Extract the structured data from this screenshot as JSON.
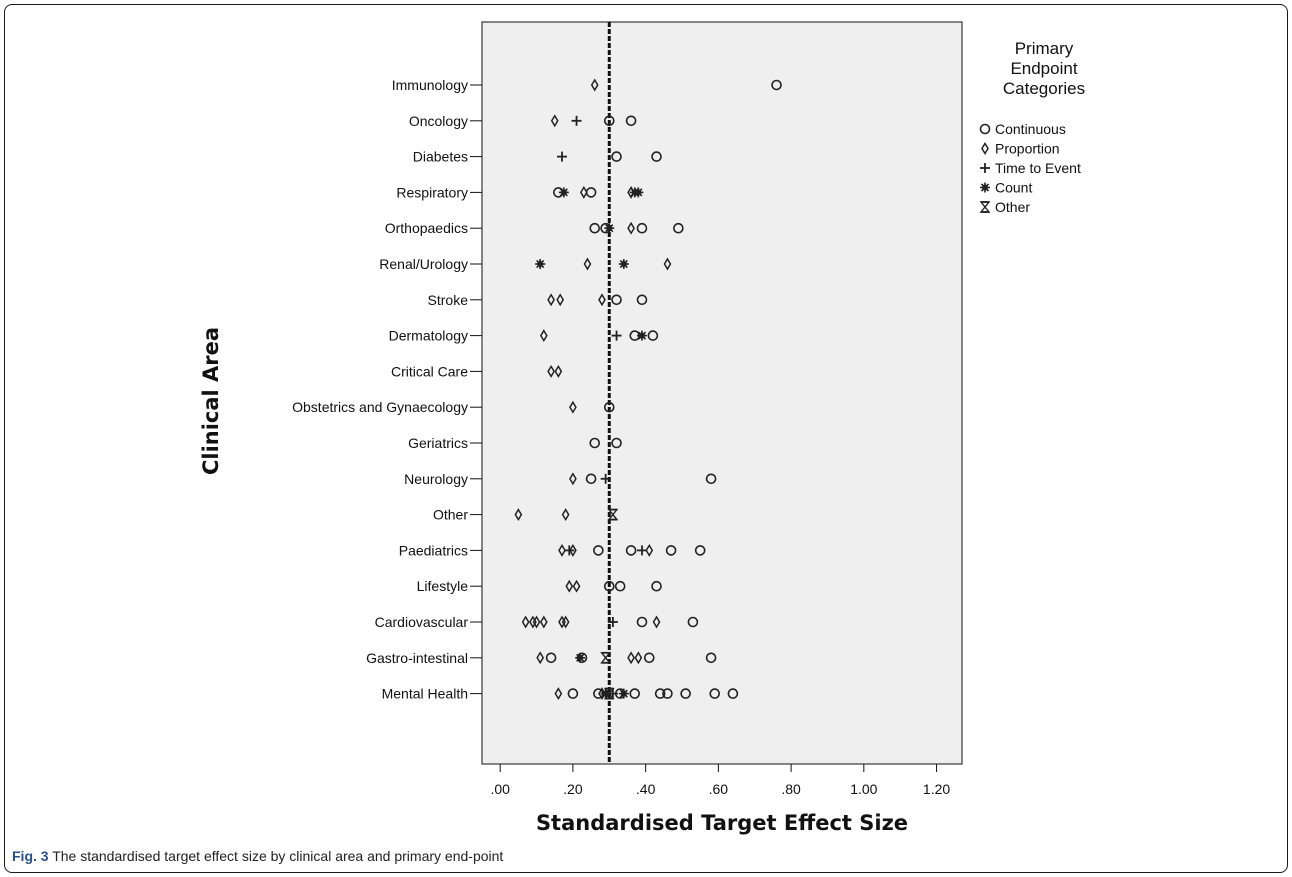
{
  "chart_data": {
    "type": "scatter",
    "xlabel": "Standardised Target Effect Size",
    "ylabel": "Clinical Area",
    "xlim": [
      -0.05,
      1.27
    ],
    "x_ticks": [
      ".00",
      ".20",
      ".40",
      ".60",
      ".80",
      "1.00",
      "1.20"
    ],
    "reference_line_x": 0.3,
    "legend": {
      "position": "right",
      "title_lines": [
        "Primary",
        "Endpoint",
        "Categories"
      ],
      "entries": [
        {
          "key": "Continuous",
          "label": "Continuous",
          "marker": "circle"
        },
        {
          "key": "Proportion",
          "label": "Proportion",
          "marker": "diamond"
        },
        {
          "key": "TimeToEvent",
          "label": "Time to Event",
          "marker": "plus"
        },
        {
          "key": "Count",
          "label": "Count",
          "marker": "asterisk"
        },
        {
          "key": "Other",
          "label": "Other",
          "marker": "hourglass"
        }
      ]
    },
    "categories": [
      "Immunology",
      "Oncology",
      "Diabetes",
      "Respiratory",
      "Orthopaedics",
      "Renal/Urology",
      "Stroke",
      "Dermatology",
      "Critical Care",
      "Obstetrics and Gynaecology",
      "Geriatrics",
      "Neurology",
      "Other",
      "Paediatrics",
      "Lifestyle",
      "Cardiovascular",
      "Gastro-intestinal",
      "Mental Health"
    ],
    "points": [
      {
        "area": "Immunology",
        "type": "Proportion",
        "x": 0.26
      },
      {
        "area": "Immunology",
        "type": "Continuous",
        "x": 0.76
      },
      {
        "area": "Oncology",
        "type": "Proportion",
        "x": 0.15
      },
      {
        "area": "Oncology",
        "type": "TimeToEvent",
        "x": 0.21
      },
      {
        "area": "Oncology",
        "type": "Continuous",
        "x": 0.3
      },
      {
        "area": "Oncology",
        "type": "Continuous",
        "x": 0.36
      },
      {
        "area": "Diabetes",
        "type": "TimeToEvent",
        "x": 0.17
      },
      {
        "area": "Diabetes",
        "type": "Continuous",
        "x": 0.32
      },
      {
        "area": "Diabetes",
        "type": "Continuous",
        "x": 0.43
      },
      {
        "area": "Respiratory",
        "type": "Continuous",
        "x": 0.16
      },
      {
        "area": "Respiratory",
        "type": "Count",
        "x": 0.175
      },
      {
        "area": "Respiratory",
        "type": "Proportion",
        "x": 0.23
      },
      {
        "area": "Respiratory",
        "type": "Continuous",
        "x": 0.25
      },
      {
        "area": "Respiratory",
        "type": "Proportion",
        "x": 0.36
      },
      {
        "area": "Respiratory",
        "type": "Count",
        "x": 0.37
      },
      {
        "area": "Respiratory",
        "type": "Count",
        "x": 0.38
      },
      {
        "area": "Orthopaedics",
        "type": "Continuous",
        "x": 0.26
      },
      {
        "area": "Orthopaedics",
        "type": "Continuous",
        "x": 0.29
      },
      {
        "area": "Orthopaedics",
        "type": "Count",
        "x": 0.3
      },
      {
        "area": "Orthopaedics",
        "type": "Proportion",
        "x": 0.36
      },
      {
        "area": "Orthopaedics",
        "type": "Continuous",
        "x": 0.39
      },
      {
        "area": "Orthopaedics",
        "type": "Continuous",
        "x": 0.49
      },
      {
        "area": "Renal/Urology",
        "type": "Count",
        "x": 0.11
      },
      {
        "area": "Renal/Urology",
        "type": "Proportion",
        "x": 0.24
      },
      {
        "area": "Renal/Urology",
        "type": "Count",
        "x": 0.34
      },
      {
        "area": "Renal/Urology",
        "type": "Proportion",
        "x": 0.46
      },
      {
        "area": "Stroke",
        "type": "Proportion",
        "x": 0.14
      },
      {
        "area": "Stroke",
        "type": "Proportion",
        "x": 0.165
      },
      {
        "area": "Stroke",
        "type": "Proportion",
        "x": 0.28
      },
      {
        "area": "Stroke",
        "type": "Continuous",
        "x": 0.32
      },
      {
        "area": "Stroke",
        "type": "Continuous",
        "x": 0.39
      },
      {
        "area": "Dermatology",
        "type": "Proportion",
        "x": 0.12
      },
      {
        "area": "Dermatology",
        "type": "TimeToEvent",
        "x": 0.32
      },
      {
        "area": "Dermatology",
        "type": "Continuous",
        "x": 0.37
      },
      {
        "area": "Dermatology",
        "type": "Count",
        "x": 0.39
      },
      {
        "area": "Dermatology",
        "type": "Continuous",
        "x": 0.42
      },
      {
        "area": "Critical Care",
        "type": "Proportion",
        "x": 0.14
      },
      {
        "area": "Critical Care",
        "type": "Proportion",
        "x": 0.16
      },
      {
        "area": "Obstetrics and Gynaecology",
        "type": "Proportion",
        "x": 0.2
      },
      {
        "area": "Obstetrics and Gynaecology",
        "type": "Continuous",
        "x": 0.3
      },
      {
        "area": "Geriatrics",
        "type": "Continuous",
        "x": 0.26
      },
      {
        "area": "Geriatrics",
        "type": "Continuous",
        "x": 0.32
      },
      {
        "area": "Neurology",
        "type": "Proportion",
        "x": 0.2
      },
      {
        "area": "Neurology",
        "type": "Continuous",
        "x": 0.25
      },
      {
        "area": "Neurology",
        "type": "TimeToEvent",
        "x": 0.29
      },
      {
        "area": "Neurology",
        "type": "Continuous",
        "x": 0.58
      },
      {
        "area": "Other",
        "type": "Proportion",
        "x": 0.05
      },
      {
        "area": "Other",
        "type": "Proportion",
        "x": 0.18
      },
      {
        "area": "Other",
        "type": "Other",
        "x": 0.31
      },
      {
        "area": "Paediatrics",
        "type": "Proportion",
        "x": 0.17
      },
      {
        "area": "Paediatrics",
        "type": "TimeToEvent",
        "x": 0.19
      },
      {
        "area": "Paediatrics",
        "type": "Proportion",
        "x": 0.2
      },
      {
        "area": "Paediatrics",
        "type": "Continuous",
        "x": 0.27
      },
      {
        "area": "Paediatrics",
        "type": "Continuous",
        "x": 0.36
      },
      {
        "area": "Paediatrics",
        "type": "TimeToEvent",
        "x": 0.39
      },
      {
        "area": "Paediatrics",
        "type": "Proportion",
        "x": 0.41
      },
      {
        "area": "Paediatrics",
        "type": "Continuous",
        "x": 0.47
      },
      {
        "area": "Paediatrics",
        "type": "Continuous",
        "x": 0.55
      },
      {
        "area": "Lifestyle",
        "type": "Proportion",
        "x": 0.19
      },
      {
        "area": "Lifestyle",
        "type": "Proportion",
        "x": 0.21
      },
      {
        "area": "Lifestyle",
        "type": "Continuous",
        "x": 0.3
      },
      {
        "area": "Lifestyle",
        "type": "Continuous",
        "x": 0.33
      },
      {
        "area": "Lifestyle",
        "type": "Continuous",
        "x": 0.43
      },
      {
        "area": "Cardiovascular",
        "type": "Proportion",
        "x": 0.07
      },
      {
        "area": "Cardiovascular",
        "type": "Proportion",
        "x": 0.09
      },
      {
        "area": "Cardiovascular",
        "type": "Proportion",
        "x": 0.1
      },
      {
        "area": "Cardiovascular",
        "type": "Proportion",
        "x": 0.12
      },
      {
        "area": "Cardiovascular",
        "type": "Proportion",
        "x": 0.17
      },
      {
        "area": "Cardiovascular",
        "type": "Proportion",
        "x": 0.18
      },
      {
        "area": "Cardiovascular",
        "type": "TimeToEvent",
        "x": 0.31
      },
      {
        "area": "Cardiovascular",
        "type": "Continuous",
        "x": 0.39
      },
      {
        "area": "Cardiovascular",
        "type": "Proportion",
        "x": 0.43
      },
      {
        "area": "Cardiovascular",
        "type": "Continuous",
        "x": 0.53
      },
      {
        "area": "Gastro-intestinal",
        "type": "Proportion",
        "x": 0.11
      },
      {
        "area": "Gastro-intestinal",
        "type": "Continuous",
        "x": 0.14
      },
      {
        "area": "Gastro-intestinal",
        "type": "Count",
        "x": 0.22
      },
      {
        "area": "Gastro-intestinal",
        "type": "Continuous",
        "x": 0.225
      },
      {
        "area": "Gastro-intestinal",
        "type": "Other",
        "x": 0.29
      },
      {
        "area": "Gastro-intestinal",
        "type": "Proportion",
        "x": 0.36
      },
      {
        "area": "Gastro-intestinal",
        "type": "Proportion",
        "x": 0.38
      },
      {
        "area": "Gastro-intestinal",
        "type": "Continuous",
        "x": 0.41
      },
      {
        "area": "Gastro-intestinal",
        "type": "Continuous",
        "x": 0.58
      },
      {
        "area": "Mental Health",
        "type": "Proportion",
        "x": 0.16
      },
      {
        "area": "Mental Health",
        "type": "Continuous",
        "x": 0.2
      },
      {
        "area": "Mental Health",
        "type": "Continuous",
        "x": 0.27
      },
      {
        "area": "Mental Health",
        "type": "Proportion",
        "x": 0.28
      },
      {
        "area": "Mental Health",
        "type": "Count",
        "x": 0.29
      },
      {
        "area": "Mental Health",
        "type": "Other",
        "x": 0.3
      },
      {
        "area": "Mental Health",
        "type": "TimeToEvent",
        "x": 0.31
      },
      {
        "area": "Mental Health",
        "type": "Continuous",
        "x": 0.33
      },
      {
        "area": "Mental Health",
        "type": "Count",
        "x": 0.34
      },
      {
        "area": "Mental Health",
        "type": "Continuous",
        "x": 0.37
      },
      {
        "area": "Mental Health",
        "type": "Continuous",
        "x": 0.44
      },
      {
        "area": "Mental Health",
        "type": "Continuous",
        "x": 0.46
      },
      {
        "area": "Mental Health",
        "type": "Continuous",
        "x": 0.51
      },
      {
        "area": "Mental Health",
        "type": "Continuous",
        "x": 0.59
      },
      {
        "area": "Mental Health",
        "type": "Continuous",
        "x": 0.64
      }
    ]
  },
  "caption": {
    "label": "Fig. 3",
    "text": " The standardised target effect size by clinical area and primary end-point"
  },
  "colors": {
    "plot_background": "#efefef",
    "marker": "#222222",
    "reference_line": "#111111"
  }
}
